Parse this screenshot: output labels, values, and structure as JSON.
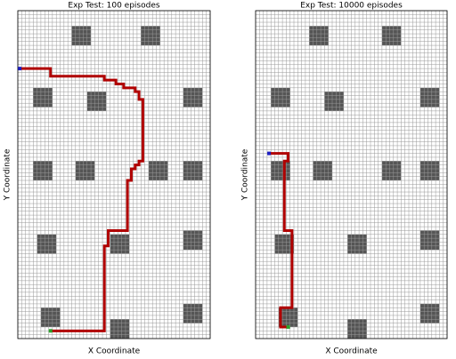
{
  "chart_data": [
    {
      "type": "gridworld",
      "title": "Exp Test: 100 episodes",
      "x_label": "X Coordinate",
      "y_label": "Y Coordinate",
      "xlim": [
        0,
        50
      ],
      "ylim": [
        85,
        0
      ],
      "grid": true,
      "obstacles": {
        "color": "#555555",
        "cells": [
          [
            14,
            4,
            5,
            5
          ],
          [
            32,
            4,
            5,
            5
          ],
          [
            4,
            20,
            5,
            5
          ],
          [
            18,
            21,
            5,
            5
          ],
          [
            43,
            20,
            5,
            5
          ],
          [
            4,
            39,
            5,
            5
          ],
          [
            15,
            39,
            5,
            5
          ],
          [
            34,
            39,
            5,
            5
          ],
          [
            43,
            39,
            5,
            5
          ],
          [
            5,
            58,
            5,
            5
          ],
          [
            24,
            58,
            5,
            5
          ],
          [
            43,
            57,
            5,
            5
          ],
          [
            6,
            77,
            5,
            5
          ],
          [
            24,
            80,
            5,
            5
          ],
          [
            43,
            76,
            5,
            5
          ]
        ]
      },
      "path": {
        "color": "#b00000",
        "start_color": "#1f1fbf",
        "end_color": "#2ca02c",
        "x": [
          0.5,
          8.5,
          8.5,
          22.5,
          22.5,
          25.5,
          25.5,
          27.5,
          27.5,
          30.5,
          30.5,
          31.5,
          31.5,
          32.5,
          32.5,
          31.5,
          31.5,
          30.5,
          30.5,
          29.5,
          29.5,
          28.5,
          28.5,
          23.5,
          23.5,
          22.5,
          22.5,
          8.5
        ],
        "y": [
          15,
          15,
          17,
          17,
          18,
          18,
          19,
          19,
          20,
          20,
          21,
          21,
          23,
          23,
          39,
          39,
          40,
          40,
          41,
          41,
          44,
          44,
          57,
          57,
          61,
          61,
          83,
          83
        ]
      }
    },
    {
      "type": "gridworld",
      "title": "Exp Test: 10000 episodes",
      "x_label": "X Coordinate",
      "y_label": "Y Coordinate",
      "xlim": [
        0,
        50
      ],
      "ylim": [
        85,
        0
      ],
      "grid": true,
      "obstacles": {
        "color": "#555555",
        "cells": [
          [
            14,
            4,
            5,
            5
          ],
          [
            33,
            4,
            5,
            5
          ],
          [
            4,
            20,
            5,
            5
          ],
          [
            18,
            21,
            5,
            5
          ],
          [
            43,
            20,
            5,
            5
          ],
          [
            4,
            39,
            5,
            5
          ],
          [
            15,
            39,
            5,
            5
          ],
          [
            33,
            39,
            5,
            5
          ],
          [
            43,
            39,
            5,
            5
          ],
          [
            5,
            58,
            5,
            5
          ],
          [
            24,
            58,
            5,
            5
          ],
          [
            43,
            57,
            5,
            5
          ],
          [
            6,
            77,
            5,
            5
          ],
          [
            24,
            80,
            5,
            5
          ],
          [
            43,
            76,
            5,
            5
          ]
        ]
      },
      "path": {
        "color": "#b00000",
        "start_color": "#1f1fbf",
        "end_color": "#2ca02c",
        "x": [
          3.5,
          8.5,
          8.5,
          7.5,
          7.5,
          9.5,
          9.5,
          6.5,
          6.5,
          8.5
        ],
        "y": [
          37,
          37,
          39,
          39,
          57,
          57,
          77,
          77,
          82,
          82
        ]
      }
    }
  ]
}
